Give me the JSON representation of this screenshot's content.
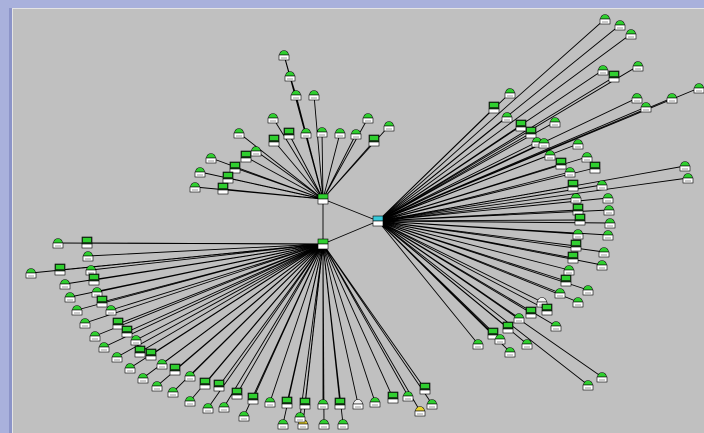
{
  "window": {
    "frame_color": "#a9b1dc",
    "canvas_color": "#c0c0c0"
  },
  "topology": {
    "link_color": "#000000",
    "node_colors": {
      "up": "#2fcf2f",
      "warning": "#e6d22e",
      "unknown": "#f2f2f2"
    },
    "hubs": [
      {
        "id": "hub-center",
        "icon": "switch-icon"
      },
      {
        "id": "hub-upper",
        "icon": "switch-icon"
      },
      {
        "id": "hub-right",
        "icon": "router-icon"
      }
    ]
  }
}
